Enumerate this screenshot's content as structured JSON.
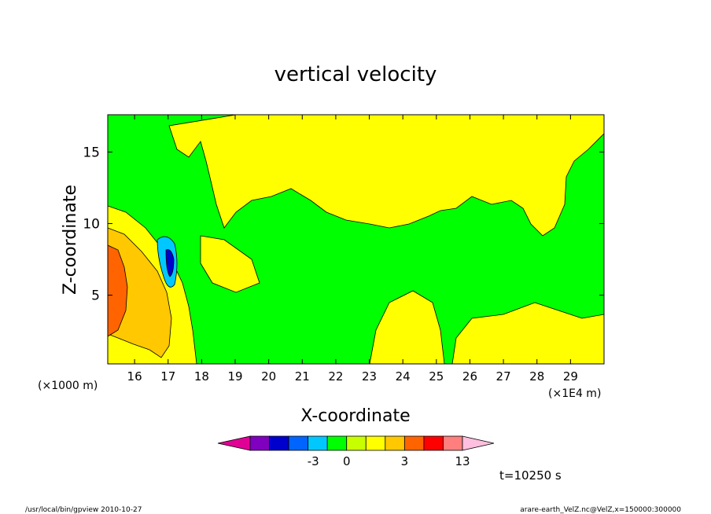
{
  "chart_data": {
    "type": "heatmap",
    "title": "vertical velocity",
    "xlabel": "X-coordinate",
    "ylabel": "Z-coordinate",
    "x_unit_left": "(×1000 m)",
    "x_unit_right": "(×1E4 m)",
    "xlim": [
      15.2,
      30.0
    ],
    "ylim": [
      0.2,
      17.6
    ],
    "xticks": [
      16,
      17,
      18,
      19,
      20,
      21,
      22,
      23,
      24,
      25,
      26,
      27,
      28,
      29
    ],
    "yticks": [
      5,
      10,
      15
    ],
    "colorbar": {
      "colors": [
        "#e10096",
        "#7f00bf",
        "#0000cd",
        "#0064ff",
        "#00c8ff",
        "#00ff00",
        "#c8ff00",
        "#ffff00",
        "#ffc800",
        "#ff6400",
        "#ff0000",
        "#ff7f7f",
        "#ffbfdf"
      ],
      "tick_labels": [
        "-3",
        "0",
        "3",
        "13"
      ]
    },
    "time_label": "t=10250 s",
    "regions": [
      {
        "name": "background",
        "color": "#00ff00"
      },
      {
        "name": "positive-upper",
        "color": "#ffff00"
      },
      {
        "name": "updraft-core",
        "color": "#ffc800"
      },
      {
        "name": "updraft-max",
        "color": "#ff6400"
      },
      {
        "name": "downdraft",
        "color": "#00c8ff"
      },
      {
        "name": "downdraft-core",
        "color": "#0000cd"
      }
    ]
  },
  "footer": {
    "left": "/usr/local/bin/gpview   2010-10-27",
    "right": "arare-earth_VelZ.nc@VelZ,x=150000:300000"
  }
}
